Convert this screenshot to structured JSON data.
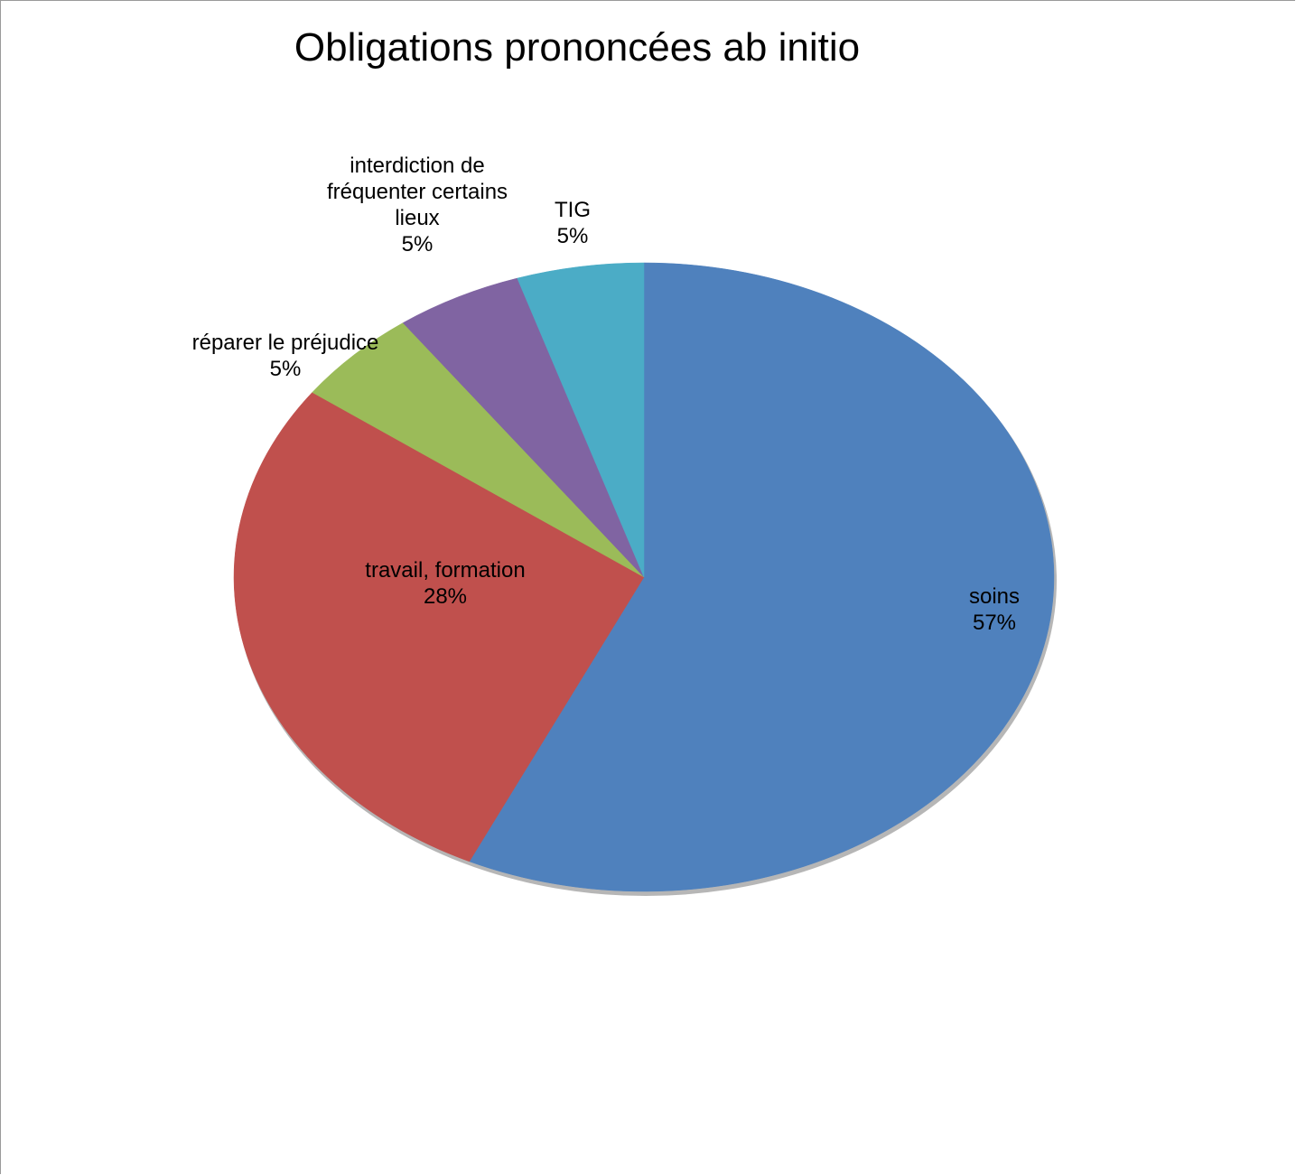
{
  "chart_data": {
    "type": "pie",
    "title": "Obligations prononcées ab initio",
    "slices": [
      {
        "label": "soins",
        "value": 57,
        "value_label": "57%",
        "color": "#4f81bd"
      },
      {
        "label": "travail, formation",
        "value": 28,
        "value_label": "28%",
        "color": "#c0504d"
      },
      {
        "label": "réparer le préjudice",
        "value": 5,
        "value_label": "5%",
        "color": "#9bbb59"
      },
      {
        "label": "interdiction de fréquenter certains lieux",
        "value": 5,
        "value_label": "5%",
        "color": "#8064a2"
      },
      {
        "label": "TIG",
        "value": 5,
        "value_label": "5%",
        "color": "#4bacc6"
      }
    ],
    "start_angle": "12 o'clock",
    "direction": "clockwise",
    "legend": "none",
    "data_labels": "category name and percentage"
  }
}
